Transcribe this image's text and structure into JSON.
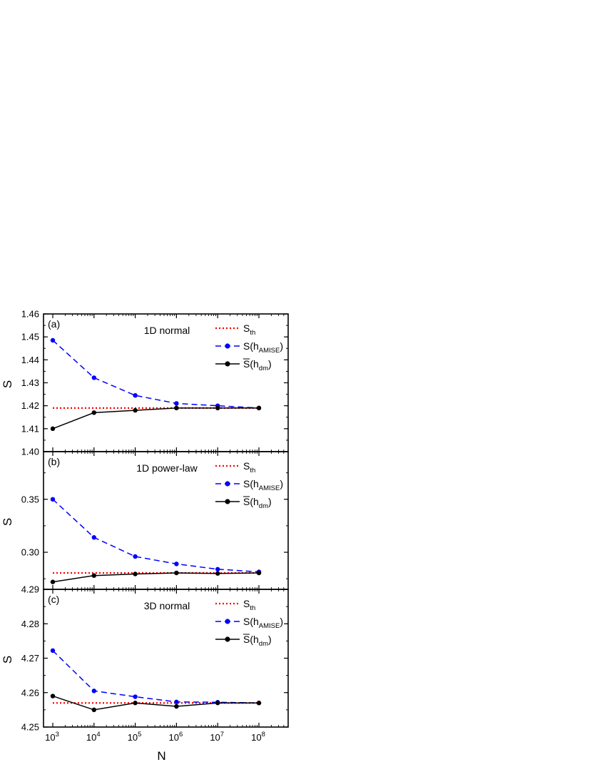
{
  "chart_data": [
    {
      "type": "line",
      "panel_label": "(a)",
      "annotation": "1D normal",
      "ylabel": "S",
      "x_scale": "log",
      "x": [
        1000,
        10000,
        100000,
        1000000,
        10000000,
        100000000
      ],
      "ylim": [
        1.4,
        1.46
      ],
      "yticks": [
        "1.40",
        "1.41",
        "1.42",
        "1.43",
        "1.44",
        "1.45",
        "1.46"
      ],
      "legend_position": "top-right",
      "series": [
        {
          "name": "S",
          "sub": "th",
          "color": "#ff0000",
          "style": "dotted",
          "marker": "none",
          "values": [
            1.419,
            1.419,
            1.419,
            1.419,
            1.419,
            1.419
          ]
        },
        {
          "name": "S(h",
          "sub": "AMISE",
          "tail": ")",
          "color": "#0000ff",
          "style": "dashed",
          "marker": "circle",
          "values": [
            1.4485,
            1.4322,
            1.4245,
            1.421,
            1.42,
            1.419
          ]
        },
        {
          "name": "S(h",
          "sub": "dm",
          "tail": ")",
          "overline": true,
          "color": "#000000",
          "style": "solid",
          "marker": "circle",
          "values": [
            1.41,
            1.417,
            1.418,
            1.419,
            1.419,
            1.419
          ]
        }
      ]
    },
    {
      "type": "line",
      "panel_label": "(b)",
      "annotation": "1D power-law",
      "ylabel": "S",
      "x_scale": "log",
      "x": [
        1000,
        10000,
        100000,
        1000000,
        10000000,
        100000000
      ],
      "ylim": [
        0.265,
        0.395
      ],
      "yticks": [
        "0.30",
        "0.35"
      ],
      "ytick_values": [
        0.3,
        0.35
      ],
      "legend_position": "top-right",
      "series": [
        {
          "name": "S",
          "sub": "th",
          "color": "#ff0000",
          "style": "dotted",
          "marker": "none",
          "values": [
            0.2805,
            0.2805,
            0.2805,
            0.2805,
            0.2805,
            0.2805
          ]
        },
        {
          "name": "S(h",
          "sub": "AMISE",
          "tail": ")",
          "color": "#0000ff",
          "style": "dashed",
          "marker": "circle",
          "values": [
            0.35,
            0.314,
            0.296,
            0.289,
            0.284,
            0.2815
          ]
        },
        {
          "name": "S(h",
          "sub": "dm",
          "tail": ")",
          "overline": true,
          "color": "#000000",
          "style": "solid",
          "marker": "circle",
          "values": [
            0.272,
            0.278,
            0.2795,
            0.2805,
            0.28,
            0.2805
          ]
        }
      ]
    },
    {
      "type": "line",
      "panel_label": "(c)",
      "annotation": "3D normal",
      "ylabel": "S",
      "xlabel": "N",
      "x_scale": "log",
      "x": [
        1000,
        10000,
        100000,
        1000000,
        10000000,
        100000000
      ],
      "xtick_base": "10",
      "xtick_exponents": [
        "3",
        "4",
        "5",
        "6",
        "7",
        "8"
      ],
      "ylim": [
        4.25,
        4.29
      ],
      "yticks": [
        "4.25",
        "4.26",
        "4.27",
        "4.28",
        "4.29"
      ],
      "legend_position": "top-right",
      "series": [
        {
          "name": "S",
          "sub": "th",
          "color": "#ff0000",
          "style": "dotted",
          "marker": "none",
          "values": [
            4.257,
            4.257,
            4.257,
            4.257,
            4.257,
            4.257
          ]
        },
        {
          "name": "S(h",
          "sub": "AMISE",
          "tail": ")",
          "color": "#0000ff",
          "style": "dashed",
          "marker": "circle",
          "values": [
            4.2722,
            4.2605,
            4.2588,
            4.2573,
            4.2572,
            4.257
          ]
        },
        {
          "name": "S(h",
          "sub": "dm",
          "tail": ")",
          "overline": true,
          "color": "#000000",
          "style": "solid",
          "marker": "circle",
          "values": [
            4.259,
            4.255,
            4.257,
            4.256,
            4.257,
            4.257
          ]
        }
      ]
    }
  ]
}
